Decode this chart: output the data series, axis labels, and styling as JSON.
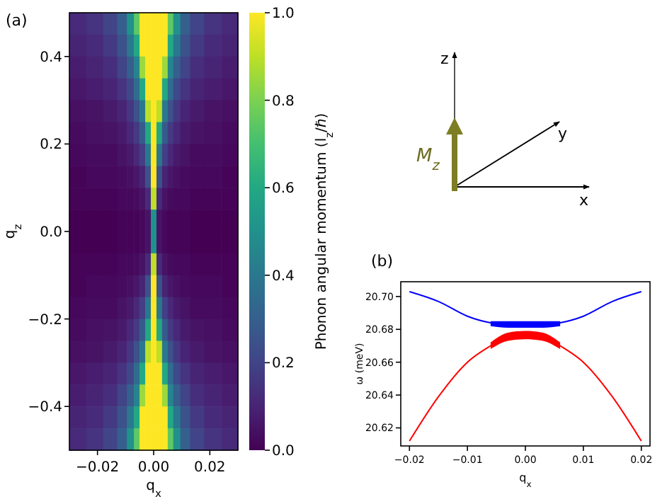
{
  "chart_data": [
    {
      "type": "heatmap",
      "title": "(a)",
      "xlabel": "q$_{x}$",
      "ylabel": "q$_{z}$",
      "clabel": "Phonon angular momentum (l$_{z}$/ℏ)",
      "x": [
        -0.027,
        -0.021,
        -0.015,
        -0.011,
        -0.008,
        -0.006,
        -0.004,
        -0.002,
        0,
        0.002,
        0.004,
        0.006,
        0.008,
        0.011,
        0.015,
        0.021,
        0.027
      ],
      "y": [
        0.475,
        0.425,
        0.375,
        0.325,
        0.275,
        0.225,
        0.175,
        0.125,
        0.075,
        0.025,
        -0.025,
        -0.075,
        -0.125,
        -0.175,
        -0.225,
        -0.275,
        -0.325,
        -0.375,
        -0.425,
        -0.475
      ],
      "cells": [
        [
          0.12,
          0.15,
          0.2,
          0.3,
          0.5,
          0.75,
          1,
          1,
          1,
          1,
          1,
          0.75,
          0.5,
          0.3,
          0.2,
          0.15,
          0.12
        ],
        [
          0.1,
          0.12,
          0.17,
          0.25,
          0.4,
          0.6,
          1,
          1,
          1,
          1,
          1,
          0.6,
          0.4,
          0.25,
          0.17,
          0.12,
          0.1
        ],
        [
          0.08,
          0.1,
          0.13,
          0.2,
          0.3,
          0.45,
          0.85,
          1,
          1,
          1,
          0.85,
          0.45,
          0.3,
          0.2,
          0.13,
          0.1,
          0.08
        ],
        [
          0.06,
          0.08,
          0.1,
          0.15,
          0.22,
          0.35,
          0.6,
          1,
          1,
          1,
          0.6,
          0.35,
          0.22,
          0.15,
          0.1,
          0.08,
          0.06
        ],
        [
          0.04,
          0.05,
          0.07,
          0.1,
          0.16,
          0.25,
          0.4,
          0.9,
          1,
          0.9,
          0.4,
          0.25,
          0.16,
          0.1,
          0.07,
          0.05,
          0.04
        ],
        [
          0.03,
          0.04,
          0.05,
          0.07,
          0.11,
          0.17,
          0.28,
          0.6,
          1,
          0.6,
          0.28,
          0.17,
          0.11,
          0.07,
          0.05,
          0.04,
          0.03
        ],
        [
          0.02,
          0.03,
          0.03,
          0.05,
          0.07,
          0.11,
          0.18,
          0.4,
          1,
          0.4,
          0.18,
          0.11,
          0.07,
          0.05,
          0.03,
          0.03,
          0.02
        ],
        [
          0.01,
          0.02,
          0.02,
          0.03,
          0.04,
          0.06,
          0.1,
          0.25,
          1,
          0.25,
          0.1,
          0.06,
          0.04,
          0.03,
          0.02,
          0.02,
          0.01
        ],
        [
          0.01,
          0.01,
          0.01,
          0.02,
          0.02,
          0.03,
          0.05,
          0.12,
          0.9,
          0.12,
          0.05,
          0.03,
          0.02,
          0.02,
          0.01,
          0.01,
          0.01
        ],
        [
          0,
          0,
          0,
          0.01,
          0.01,
          0.01,
          0.02,
          0.05,
          0.5,
          0.05,
          0.02,
          0.01,
          0.01,
          0.01,
          0,
          0,
          0
        ],
        [
          0,
          0,
          0,
          0.01,
          0.01,
          0.01,
          0.02,
          0.05,
          0.5,
          0.05,
          0.02,
          0.01,
          0.01,
          0.01,
          0,
          0,
          0
        ],
        [
          0.01,
          0.01,
          0.01,
          0.02,
          0.02,
          0.03,
          0.05,
          0.12,
          0.9,
          0.12,
          0.05,
          0.03,
          0.02,
          0.02,
          0.01,
          0.01,
          0.01
        ],
        [
          0.01,
          0.02,
          0.02,
          0.03,
          0.04,
          0.06,
          0.1,
          0.25,
          1,
          0.25,
          0.1,
          0.06,
          0.04,
          0.03,
          0.02,
          0.02,
          0.01
        ],
        [
          0.02,
          0.03,
          0.03,
          0.05,
          0.07,
          0.11,
          0.18,
          0.4,
          1,
          0.4,
          0.18,
          0.11,
          0.07,
          0.05,
          0.03,
          0.03,
          0.02
        ],
        [
          0.03,
          0.04,
          0.05,
          0.07,
          0.11,
          0.17,
          0.28,
          0.6,
          1,
          0.6,
          0.28,
          0.17,
          0.11,
          0.07,
          0.05,
          0.04,
          0.03
        ],
        [
          0.04,
          0.05,
          0.07,
          0.1,
          0.16,
          0.25,
          0.4,
          0.9,
          1,
          0.9,
          0.4,
          0.25,
          0.16,
          0.1,
          0.07,
          0.05,
          0.04
        ],
        [
          0.06,
          0.08,
          0.1,
          0.15,
          0.22,
          0.35,
          0.6,
          1,
          1,
          1,
          0.6,
          0.35,
          0.22,
          0.15,
          0.1,
          0.08,
          0.06
        ],
        [
          0.08,
          0.1,
          0.13,
          0.2,
          0.3,
          0.45,
          0.85,
          1,
          1,
          1,
          0.85,
          0.45,
          0.3,
          0.2,
          0.13,
          0.1,
          0.08
        ],
        [
          0.1,
          0.12,
          0.17,
          0.25,
          0.4,
          0.6,
          1,
          1,
          1,
          1,
          1,
          0.6,
          0.4,
          0.25,
          0.17,
          0.12,
          0.1
        ],
        [
          0.12,
          0.15,
          0.2,
          0.3,
          0.5,
          0.75,
          1,
          1,
          1,
          1,
          1,
          0.75,
          0.5,
          0.3,
          0.2,
          0.15,
          0.12
        ]
      ],
      "xlim": [
        -0.03,
        0.03
      ],
      "ylim": [
        -0.5,
        0.5
      ],
      "xticks": [
        {
          "value": -0.02,
          "label": "−0.02"
        },
        {
          "value": 0,
          "label": "0.00"
        },
        {
          "value": 0.02,
          "label": "0.02"
        }
      ],
      "yticks": [
        {
          "value": -0.4,
          "label": "−0.4"
        },
        {
          "value": -0.2,
          "label": "−0.2"
        },
        {
          "value": 0,
          "label": "0.0"
        },
        {
          "value": 0.2,
          "label": "0.2"
        },
        {
          "value": 0.4,
          "label": "0.4"
        }
      ],
      "clim": [
        0,
        1
      ],
      "cticks": [
        {
          "value": 0,
          "label": "0.0"
        },
        {
          "value": 0.2,
          "label": "0.2"
        },
        {
          "value": 0.4,
          "label": "0.4"
        },
        {
          "value": 0.6,
          "label": "0.6"
        },
        {
          "value": 0.8,
          "label": "0.8"
        },
        {
          "value": 1,
          "label": "1.0"
        }
      ]
    },
    {
      "type": "other",
      "annotations": [
        "z",
        "y",
        "x",
        "M$_{z}$"
      ]
    },
    {
      "type": "line",
      "title": "(b)",
      "xlabel": "q$_{x}$",
      "ylabel": "ω (meV)",
      "x": [
        -0.02,
        -0.015,
        -0.01,
        -0.006,
        -0.003,
        0,
        0.003,
        0.006,
        0.01,
        0.015,
        0.02
      ],
      "series": [
        {
          "color": "#0000ff",
          "values": [
            20.703,
            20.697,
            20.688,
            20.684,
            20.683,
            20.683,
            20.683,
            20.684,
            20.688,
            20.697,
            20.703
          ],
          "lower": [
            null,
            null,
            null,
            20.682,
            20.681,
            20.681,
            20.681,
            20.682,
            null,
            null,
            null
          ],
          "upper": [
            null,
            null,
            null,
            20.685,
            20.685,
            20.685,
            20.685,
            20.685,
            null,
            null,
            null
          ]
        },
        {
          "color": "#ff0000",
          "values": [
            20.612,
            20.639,
            20.66,
            20.67,
            20.676,
            20.677,
            20.676,
            20.67,
            20.66,
            20.639,
            20.612
          ],
          "lower": [
            null,
            null,
            null,
            20.668,
            20.673,
            20.674,
            20.673,
            20.668,
            null,
            null,
            null
          ],
          "upper": [
            null,
            null,
            null,
            20.672,
            20.678,
            20.679,
            20.678,
            20.672,
            null,
            null,
            null
          ]
        }
      ],
      "xlim": [
        -0.0215,
        0.0215
      ],
      "ylim": [
        20.609,
        20.709
      ],
      "xticks": [
        {
          "value": -0.02,
          "label": "−0.02"
        },
        {
          "value": -0.01,
          "label": "−0.01"
        },
        {
          "value": 0,
          "label": "0.00"
        },
        {
          "value": 0.01,
          "label": "0.01"
        },
        {
          "value": 0.02,
          "label": "0.02"
        }
      ],
      "yticks": [
        {
          "value": 20.62,
          "label": "20.62"
        },
        {
          "value": 20.64,
          "label": "20.64"
        },
        {
          "value": 20.66,
          "label": "20.66"
        },
        {
          "value": 20.68,
          "label": "20.68"
        },
        {
          "value": 20.7,
          "label": "20.70"
        }
      ]
    }
  ]
}
